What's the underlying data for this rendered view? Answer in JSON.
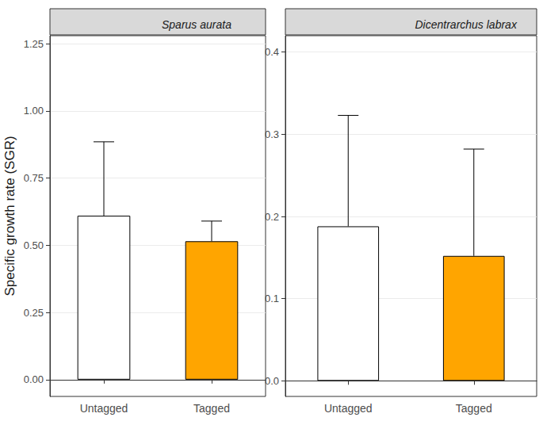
{
  "chart_data": [
    {
      "type": "bar",
      "title": "Sparus aurata",
      "y_label": "Specific growth rate (SGR)",
      "categories": [
        "Untagged",
        "Tagged"
      ],
      "values": [
        0.61,
        0.515
      ],
      "errors": [
        0.275,
        0.075
      ],
      "colors": [
        "#ffffff",
        "#ffa500"
      ],
      "ylim": [
        -0.0625,
        1.28
      ],
      "yticks": [
        {
          "value": 0,
          "label": "0.00"
        },
        {
          "value": 0.25,
          "label": "0.25"
        },
        {
          "value": 0.5,
          "label": "0.50"
        },
        {
          "value": 0.75,
          "label": "0.75"
        },
        {
          "value": 1,
          "label": "1.00"
        },
        {
          "value": 1.25,
          "label": "1.25"
        }
      ],
      "grid": true
    },
    {
      "type": "bar",
      "title": "Dicentrarchus labrax",
      "categories": [
        "Untagged",
        "Tagged"
      ],
      "values": [
        0.188,
        0.152
      ],
      "errors": [
        0.135,
        0.13
      ],
      "colors": [
        "#ffffff",
        "#ffa500"
      ],
      "ylim": [
        -0.019,
        0.42
      ],
      "yticks": [
        {
          "value": 0,
          "label": "0.0"
        },
        {
          "value": 0.1,
          "label": "0.1"
        },
        {
          "value": 0.2,
          "label": "0.2"
        },
        {
          "value": 0.3,
          "label": "0.3"
        },
        {
          "value": 0.4,
          "label": "0.4"
        }
      ],
      "grid": true
    }
  ]
}
